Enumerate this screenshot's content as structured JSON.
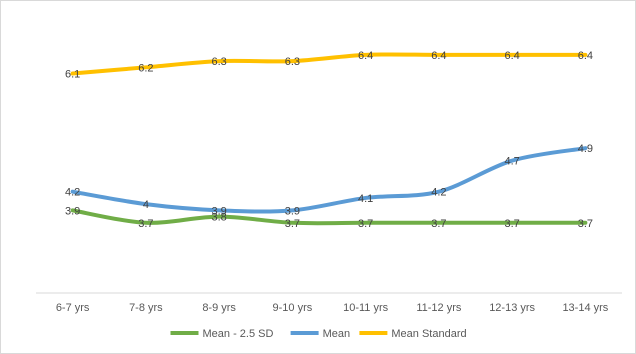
{
  "chart_data": {
    "type": "line",
    "title": "",
    "xlabel": "",
    "ylabel": "",
    "categories": [
      "6-7 yrs",
      "7-8 yrs",
      "8-9 yrs",
      "9-10 yrs",
      "10-11 yrs",
      "11-12 yrs",
      "12-13 yrs",
      "13-14 yrs"
    ],
    "ylim": [
      2.7,
      6.8
    ],
    "grid": false,
    "legend_position": "bottom",
    "series": [
      {
        "name": "Mean - 2.5 SD",
        "color": "#70ad47",
        "values": [
          3.9,
          3.7,
          3.8,
          3.7,
          3.7,
          3.7,
          3.7,
          3.7
        ],
        "labels": [
          "3.9",
          "3.7",
          "3.8",
          "3.7",
          "3.7",
          "3.7",
          "3.7",
          "3.7"
        ]
      },
      {
        "name": "Mean",
        "color": "#5b9bd5",
        "values": [
          4.2,
          4.0,
          3.9,
          3.9,
          4.1,
          4.2,
          4.7,
          4.9
        ],
        "labels": [
          "4.2",
          "4",
          "3.9",
          "3.9",
          "4.1",
          "4.2",
          "4.7",
          "4.9"
        ]
      },
      {
        "name": "Mean Standard",
        "color": "#ffc000",
        "values": [
          6.1,
          6.2,
          6.3,
          6.3,
          6.4,
          6.4,
          6.4,
          6.4
        ],
        "labels": [
          "6.1",
          "6.2",
          "6.3",
          "6.3",
          "6.4",
          "6.4",
          "6.4",
          "6.4"
        ]
      }
    ]
  }
}
